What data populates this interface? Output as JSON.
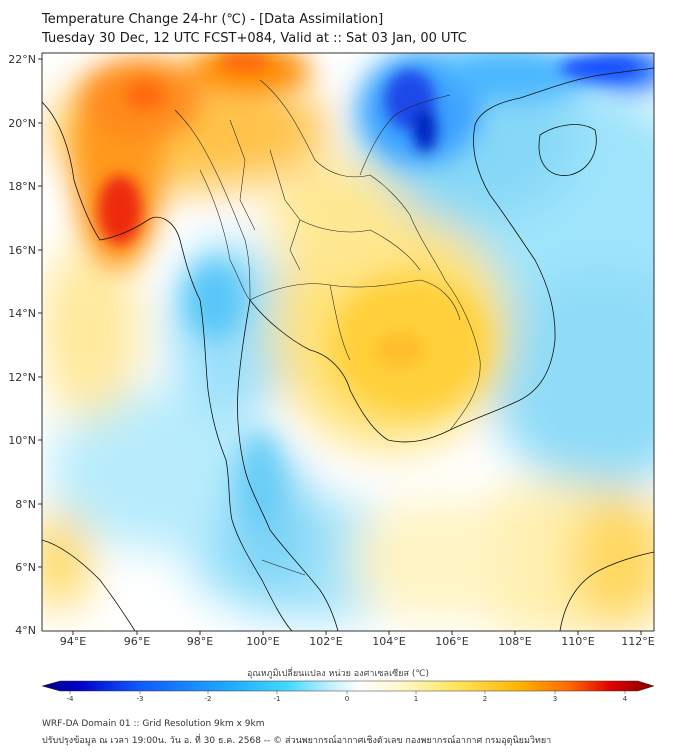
{
  "title": {
    "line1": "Temperature Change 24-hr (℃) - [Data Assimilation]",
    "line2": "Tuesday 30 Dec, 12 UTC FCST+084, Valid at :: Sat 03 Jan, 00 UTC"
  },
  "map": {
    "x_ticks": [
      "94°E",
      "96°E",
      "98°E",
      "100°E",
      "102°E",
      "104°E",
      "106°E",
      "108°E",
      "110°E",
      "112°E"
    ],
    "y_ticks": [
      "22°N",
      "20°N",
      "18°N",
      "16°N",
      "14°N",
      "12°N",
      "10°N",
      "8°N",
      "6°N",
      "4°N"
    ]
  },
  "colorbar": {
    "title": "อุณหภูมิเปลี่ยนแปลง หน่วย องศาเซลเซียส (℃)",
    "ticks": [
      "-4",
      "-3",
      "-2",
      "-1",
      "0",
      "1",
      "2",
      "3",
      "4"
    ],
    "colors": [
      "#000080",
      "#0000d8",
      "#0f5bff",
      "#1ea8ff",
      "#40d8ff",
      "#a8ecff",
      "#f4fbff",
      "#fffad0",
      "#ffe45a",
      "#ffb400",
      "#ff7a00",
      "#ff2a00",
      "#c40000",
      "#800000"
    ]
  },
  "footer": {
    "line1": "WRF-DA Domain 01 :: Grid Resolution 9km x 9km",
    "line2": "ปรับปรุงข้อมูล ณ เวลา 19:00น. วัน อ. ที่ 30 ธ.ค. 2568 -- © ส่วนพยากรณ์อากาศเชิงตัวเลข กองพยากรณ์อากาศ กรมอุตุนิยมวิทยา"
  }
}
